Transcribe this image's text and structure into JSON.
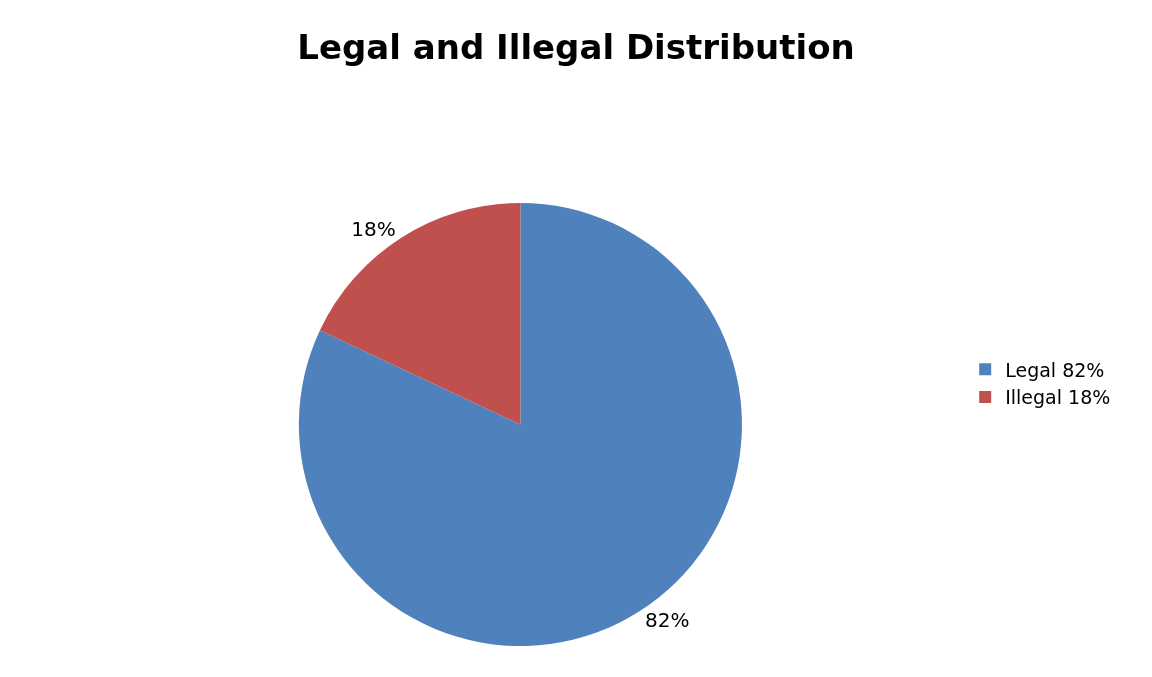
{
  "chart_data": {
    "type": "pie",
    "title": "Legal and Illegal Distribution",
    "categories": [
      "Legal 82%",
      "Illegal 18%"
    ],
    "values": [
      82,
      18
    ],
    "value_labels": [
      "82%",
      "18%"
    ],
    "colors": [
      "#4f81bd",
      "#c0504d"
    ],
    "legend": "right"
  }
}
